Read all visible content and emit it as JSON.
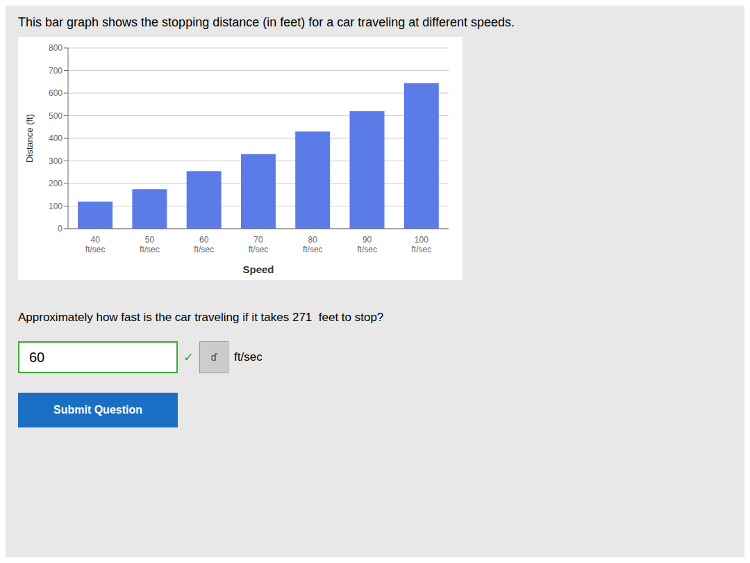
{
  "chart_data": {
    "type": "bar",
    "title": "This bar graph shows the stopping distance (in feet) for a car traveling at different speeds.",
    "categories": [
      "40\nft/sec",
      "50\nft/sec",
      "60\nft/sec",
      "70\nft/sec",
      "80\nft/sec",
      "90\nft/sec",
      "100\nft/sec"
    ],
    "values": [
      120,
      175,
      255,
      330,
      430,
      520,
      645
    ],
    "color": "#5B7BE8",
    "xlabel": "Speed",
    "ylabel": "Distance (ft)",
    "ylim": [
      0,
      800
    ],
    "yticks": [
      0,
      100,
      200,
      300,
      400,
      500,
      600,
      700,
      800
    ],
    "grid": true,
    "annotations": [
      "Approximately how fast is the car traveling if it takes 271  feet to stop?",
      "60",
      "✓",
      "ď",
      "ft/sec",
      "Submit Question"
    ]
  }
}
